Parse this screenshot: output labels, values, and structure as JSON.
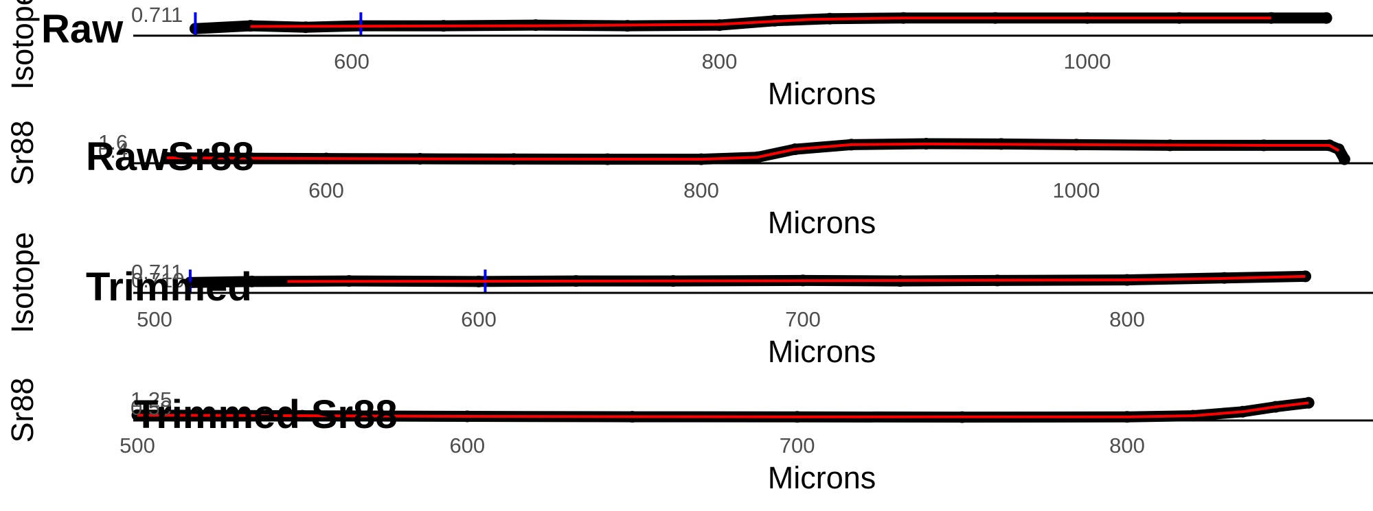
{
  "colors": {
    "points": "#000000",
    "smooth_line": "#ff0000",
    "markers": "#0000ff",
    "axis": "#000000",
    "tick_text": "#4d4d4d"
  },
  "chart_data": [
    {
      "type": "scatter",
      "title": "Raw",
      "xlabel": "Microns",
      "ylabel": "Isotope",
      "xlim": [
        455,
        1175
      ],
      "ylim": [
        0.70995,
        0.7112
      ],
      "x_ticks": [
        "600",
        "800",
        "1000"
      ],
      "y_ticks": [
        "0.711"
      ],
      "grid": false,
      "vertical_markers_x": [
        515,
        605
      ],
      "series": [
        {
          "role": "points",
          "x": [
            515,
            545,
            575,
            605,
            650,
            700,
            750,
            800,
            830,
            860,
            900,
            950,
            1000,
            1050,
            1100,
            1130
          ],
          "y": [
            0.71025,
            0.71045,
            0.71035,
            0.71045,
            0.71045,
            0.7105,
            0.71045,
            0.7105,
            0.7108,
            0.71095,
            0.711,
            0.711,
            0.711,
            0.711,
            0.711,
            0.711
          ]
        },
        {
          "role": "smooth",
          "x": [
            545,
            600,
            700,
            800,
            850,
            900,
            1000,
            1100
          ],
          "y": [
            0.7104,
            0.71042,
            0.71045,
            0.71055,
            0.7109,
            0.711,
            0.711,
            0.711
          ]
        }
      ]
    },
    {
      "type": "scatter",
      "title": "RawSr88",
      "xlabel": "Microns",
      "ylabel": "Sr88",
      "xlim": [
        455,
        1175
      ],
      "ylim": [
        0.35,
        1.7
      ],
      "x_ticks": [
        "600",
        "800",
        "1000"
      ],
      "y_ticks": [
        "1.6",
        "0.4"
      ],
      "grid": false,
      "vertical_markers_x": [],
      "series": [
        {
          "role": "points",
          "x": [
            515,
            560,
            600,
            650,
            700,
            750,
            800,
            830,
            850,
            880,
            920,
            960,
            1000,
            1050,
            1100,
            1135,
            1140,
            1143
          ],
          "y": [
            0.55,
            0.52,
            0.5,
            0.48,
            0.46,
            0.45,
            0.45,
            0.6,
            1.2,
            1.55,
            1.62,
            1.6,
            1.55,
            1.5,
            1.5,
            1.5,
            1.2,
            0.45
          ]
        },
        {
          "role": "smooth",
          "x": [
            515,
            600,
            700,
            800,
            830,
            850,
            880,
            920,
            1000,
            1100,
            1135,
            1140
          ],
          "y": [
            0.55,
            0.5,
            0.46,
            0.45,
            0.6,
            1.2,
            1.55,
            1.6,
            1.55,
            1.5,
            1.5,
            1.1
          ]
        }
      ]
    },
    {
      "type": "scatter",
      "title": "Trimmed",
      "xlabel": "Microns",
      "ylabel": "Isotope",
      "xlim": [
        490,
        862
      ],
      "ylim": [
        0.70955,
        0.7113
      ],
      "x_ticks": [
        "500",
        "600",
        "700",
        "800"
      ],
      "y_ticks": [
        "0.711",
        "0.710"
      ],
      "grid": false,
      "vertical_markers_x": [
        511,
        602
      ],
      "series": [
        {
          "role": "points",
          "x": [
            511,
            530,
            560,
            600,
            630,
            660,
            700,
            730,
            760,
            800,
            830,
            855
          ],
          "y": [
            0.7103,
            0.7104,
            0.71045,
            0.7104,
            0.71045,
            0.71045,
            0.7105,
            0.71045,
            0.7105,
            0.71055,
            0.71075,
            0.7109
          ]
        },
        {
          "role": "smooth",
          "x": [
            541,
            600,
            700,
            800,
            830,
            855
          ],
          "y": [
            0.7104,
            0.71042,
            0.71047,
            0.71055,
            0.7107,
            0.7109
          ]
        }
      ]
    },
    {
      "type": "scatter",
      "title": "Trimmed Sr88",
      "xlabel": "Microns",
      "ylabel": "Sr88",
      "xlim": [
        490,
        862
      ],
      "ylim": [
        0.45,
        1.35
      ],
      "x_ticks": [
        "500",
        "600",
        "700",
        "800"
      ],
      "y_ticks": [
        "1.25",
        "0.50"
      ],
      "grid": false,
      "vertical_markers_x": [],
      "series": [
        {
          "role": "points",
          "x": [
            500,
            550,
            600,
            650,
            700,
            750,
            800,
            820,
            835,
            845,
            855
          ],
          "y": [
            0.58,
            0.55,
            0.52,
            0.5,
            0.49,
            0.48,
            0.49,
            0.55,
            0.75,
            1.0,
            1.2
          ]
        },
        {
          "role": "smooth",
          "x": [
            500,
            600,
            700,
            800,
            820,
            835,
            845,
            855
          ],
          "y": [
            0.58,
            0.52,
            0.49,
            0.49,
            0.55,
            0.75,
            1.0,
            1.2
          ]
        }
      ]
    }
  ]
}
